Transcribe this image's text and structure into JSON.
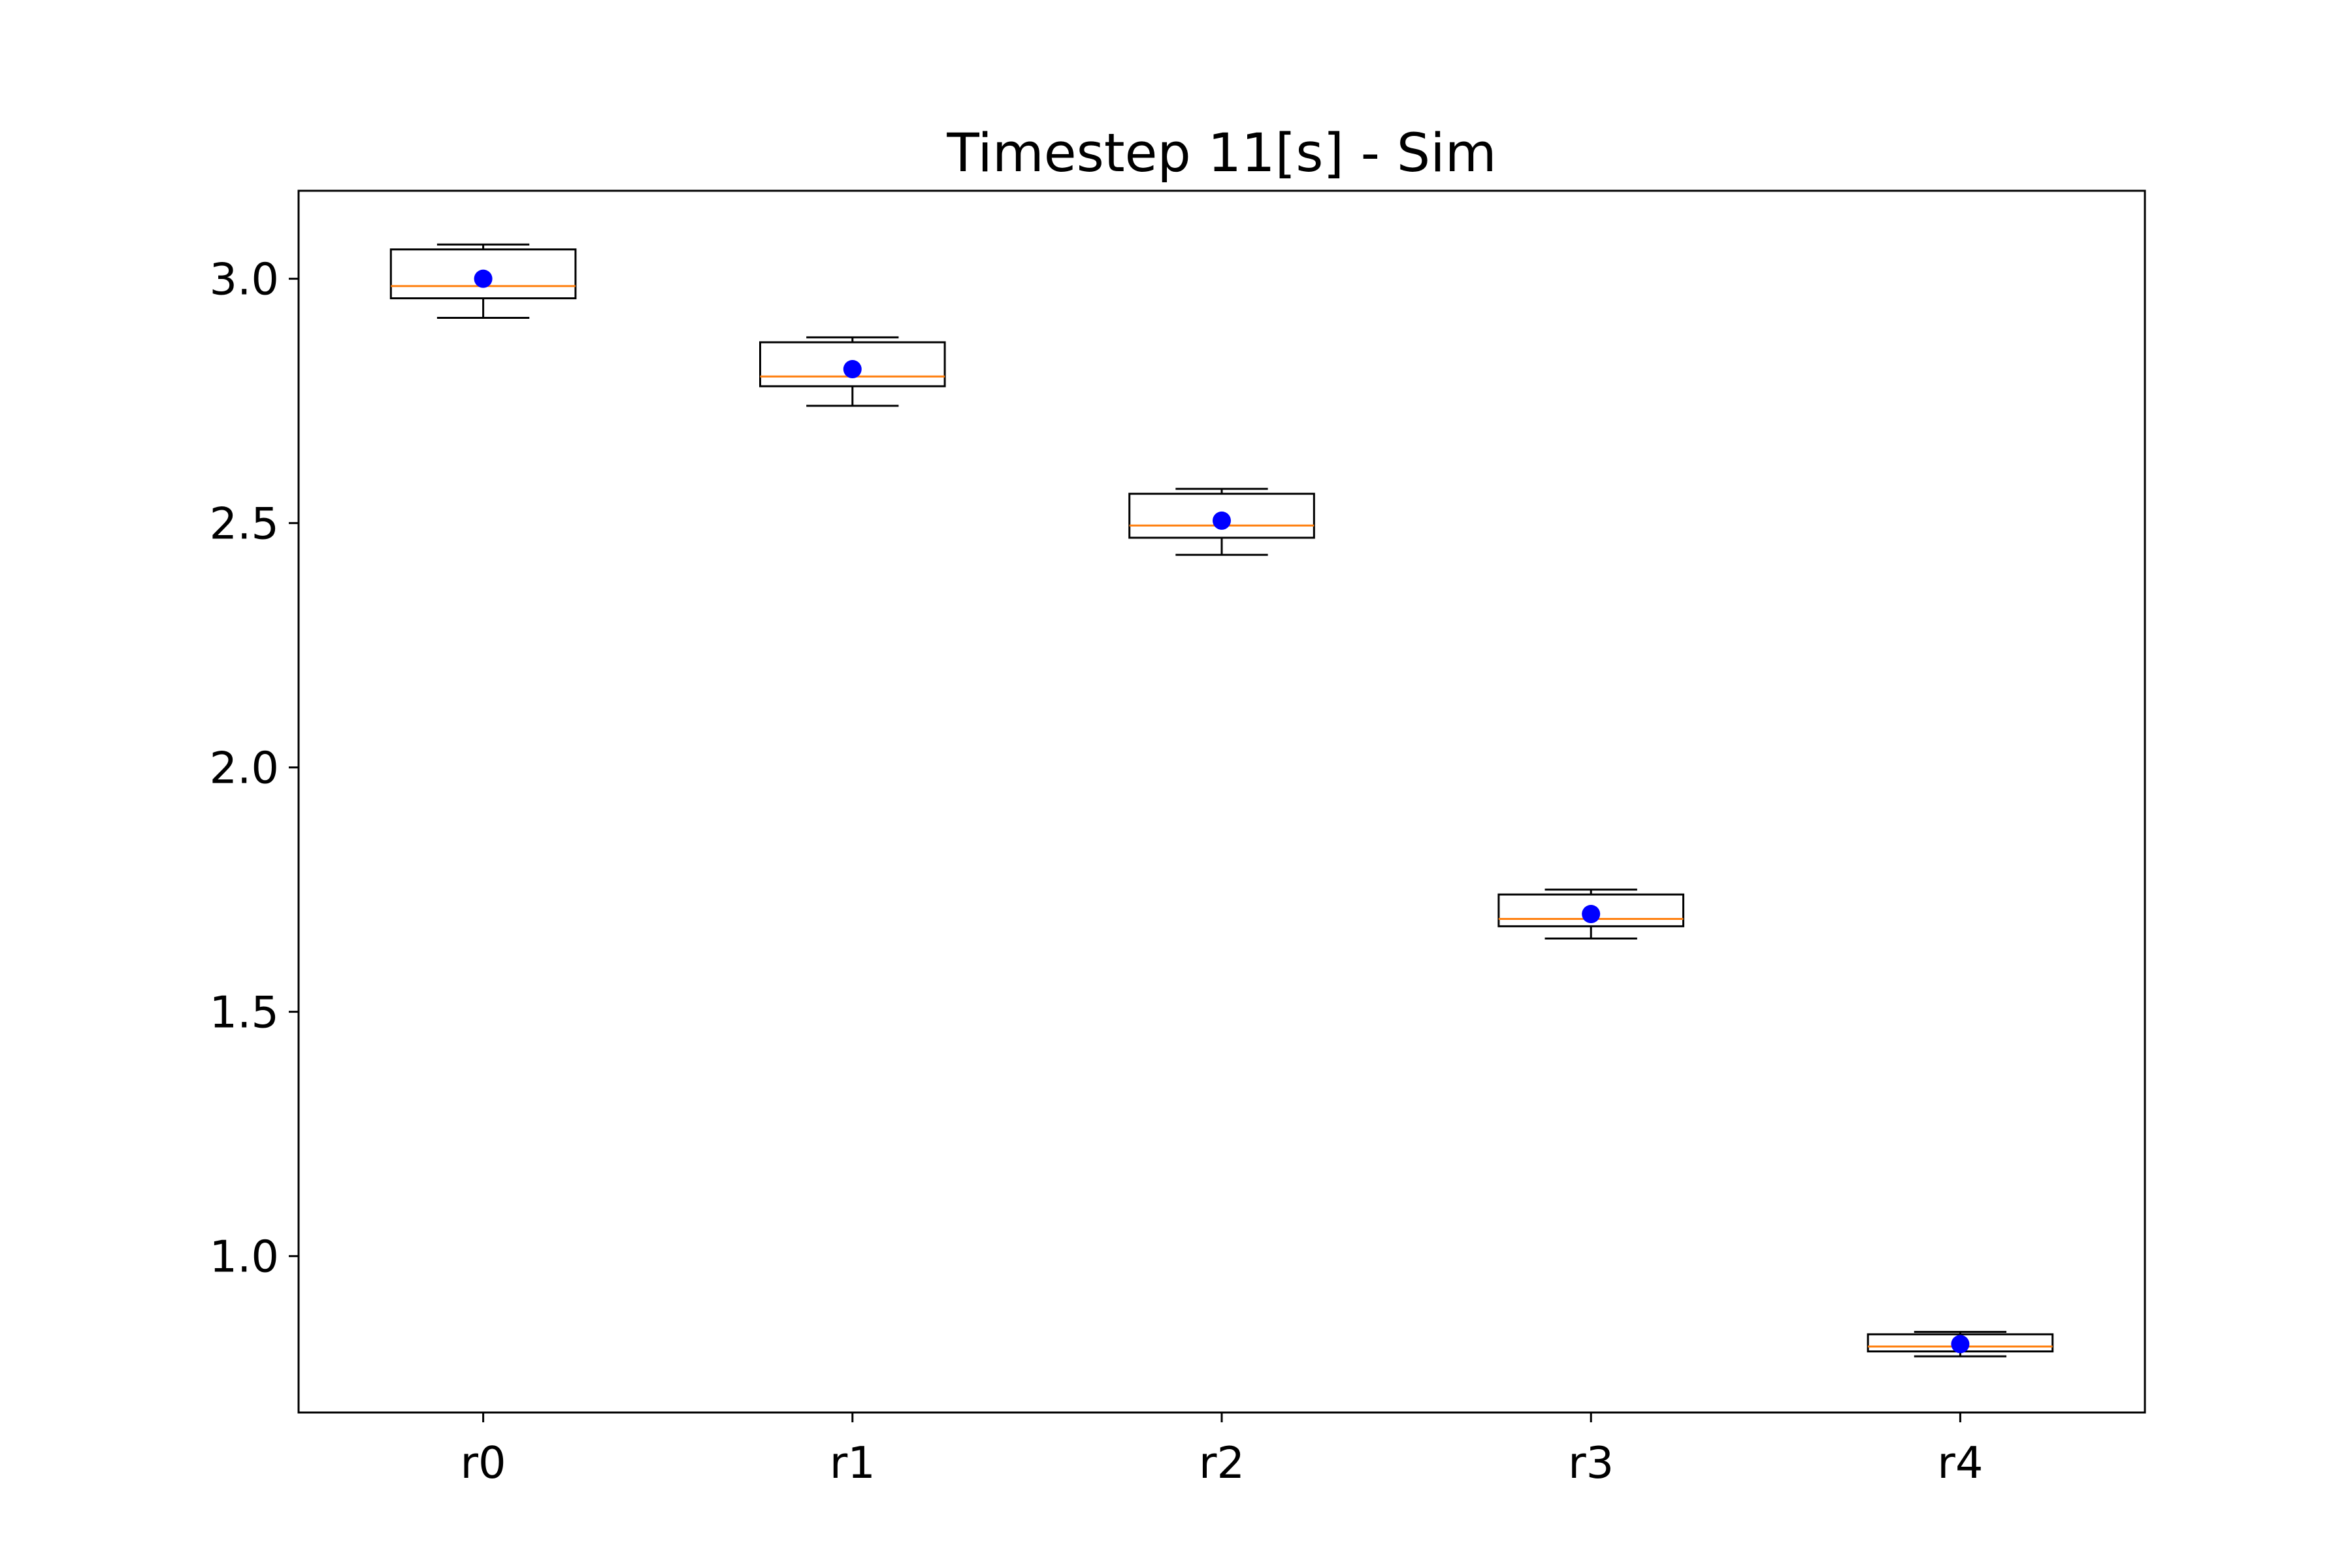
{
  "chart_data": {
    "type": "boxplot",
    "title": "Timestep 11[s] - Sim",
    "xlabel": "",
    "ylabel": "",
    "categories": [
      "r0",
      "r1",
      "r2",
      "r3",
      "r4"
    ],
    "ylim": [
      0.68,
      3.18
    ],
    "yticks": [
      1.0,
      1.5,
      2.0,
      2.5,
      3.0
    ],
    "ytick_labels": [
      "1.0",
      "1.5",
      "2.0",
      "2.5",
      "3.0"
    ],
    "grid": false,
    "boxes": [
      {
        "label": "r0",
        "whisker_low": 2.92,
        "q1": 2.96,
        "median": 2.985,
        "q3": 3.06,
        "whisker_high": 3.07,
        "mean": 3.0
      },
      {
        "label": "r1",
        "whisker_low": 2.74,
        "q1": 2.78,
        "median": 2.8,
        "q3": 2.87,
        "whisker_high": 2.88,
        "mean": 2.815
      },
      {
        "label": "r2",
        "whisker_low": 2.435,
        "q1": 2.47,
        "median": 2.495,
        "q3": 2.56,
        "whisker_high": 2.57,
        "mean": 2.505
      },
      {
        "label": "r3",
        "whisker_low": 1.65,
        "q1": 1.675,
        "median": 1.69,
        "q3": 1.74,
        "whisker_high": 1.75,
        "mean": 1.7
      },
      {
        "label": "r4",
        "whisker_low": 0.795,
        "q1": 0.805,
        "median": 0.815,
        "q3": 0.84,
        "whisker_high": 0.845,
        "mean": 0.82
      }
    ],
    "colors": {
      "box": "#000000",
      "median": "#ff7f0e",
      "mean": "#0000ff"
    }
  }
}
